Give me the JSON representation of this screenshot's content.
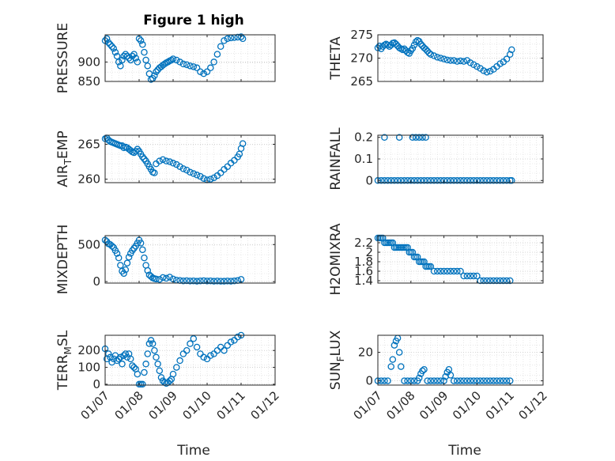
{
  "figure": {
    "title": "Figure 1 high",
    "x_axis_label": "Time",
    "marker_color": "#0072BD",
    "grid": "dotted"
  },
  "chart_data": [
    {
      "type": "scatter",
      "title": "Figure 1 high",
      "ylabel": "PRESSURE",
      "xlabel": "",
      "xlim": [
        0,
        5
      ],
      "ylim": [
        850,
        970
      ],
      "yticks": [
        850,
        900
      ],
      "xticks": [
        "01/07",
        "01/08",
        "01/09",
        "01/10",
        "01/11",
        "01/12"
      ],
      "show_xticklabels": false,
      "series": [
        {
          "x": [
            0,
            0.05,
            0.1,
            0.15,
            0.2,
            0.25,
            0.3,
            0.35,
            0.4,
            0.45,
            0.5,
            0.55,
            0.6,
            0.65,
            0.7,
            0.75,
            0.8,
            0.85,
            0.9,
            0.95,
            1.0,
            1.05,
            1.1,
            1.15,
            1.2,
            1.25,
            1.3,
            1.35,
            1.4,
            1.45,
            1.5,
            1.55,
            1.6,
            1.65,
            1.7,
            1.75,
            1.8,
            1.85,
            1.9,
            1.95,
            2.0,
            2.1,
            2.2,
            2.3,
            2.4,
            2.5,
            2.6,
            2.7,
            2.8,
            2.9,
            3.0,
            3.1,
            3.2,
            3.3,
            3.4,
            3.5,
            3.6,
            3.7,
            3.8,
            3.9,
            4.0,
            4.05
          ],
          "y": [
            955,
            960,
            950,
            945,
            940,
            935,
            925,
            915,
            900,
            890,
            905,
            915,
            920,
            915,
            910,
            905,
            915,
            920,
            910,
            900,
            960,
            955,
            945,
            925,
            905,
            890,
            870,
            855,
            858,
            865,
            875,
            880,
            885,
            888,
            892,
            895,
            898,
            900,
            903,
            905,
            908,
            905,
            900,
            895,
            893,
            890,
            888,
            885,
            875,
            870,
            875,
            885,
            900,
            920,
            940,
            955,
            960,
            962,
            963,
            964,
            965,
            960
          ]
        }
      ]
    },
    {
      "type": "scatter",
      "ylabel": "THETA",
      "xlabel": "",
      "xlim": [
        0,
        5
      ],
      "ylim": [
        265,
        275
      ],
      "yticks": [
        265,
        270,
        275
      ],
      "xticks": [
        "01/07",
        "01/08",
        "01/09",
        "01/10",
        "01/11",
        "01/12"
      ],
      "show_xticklabels": false,
      "series": [
        {
          "x": [
            0,
            0.05,
            0.1,
            0.15,
            0.2,
            0.25,
            0.3,
            0.35,
            0.4,
            0.45,
            0.5,
            0.55,
            0.6,
            0.65,
            0.7,
            0.75,
            0.8,
            0.85,
            0.9,
            0.95,
            1.0,
            1.05,
            1.1,
            1.15,
            1.2,
            1.25,
            1.3,
            1.35,
            1.4,
            1.45,
            1.5,
            1.55,
            1.6,
            1.7,
            1.8,
            1.9,
            2.0,
            2.1,
            2.2,
            2.3,
            2.4,
            2.5,
            2.6,
            2.7,
            2.8,
            2.9,
            3.0,
            3.1,
            3.2,
            3.3,
            3.4,
            3.5,
            3.6,
            3.7,
            3.8,
            3.9,
            4.0,
            4.05
          ],
          "y": [
            272.2,
            272.6,
            272.0,
            272.5,
            272.8,
            273.0,
            272.8,
            272.5,
            272.8,
            273.2,
            273.3,
            273.0,
            272.6,
            272.2,
            272.0,
            271.8,
            272.0,
            271.6,
            271.2,
            271.0,
            271.6,
            272.1,
            272.8,
            273.5,
            273.8,
            273.6,
            273.0,
            272.6,
            272.2,
            271.9,
            271.5,
            271.1,
            270.8,
            270.5,
            270.2,
            270.0,
            269.8,
            269.6,
            269.5,
            269.5,
            269.3,
            269.4,
            269.3,
            269.5,
            269.0,
            268.6,
            268.2,
            267.8,
            267.3,
            267.0,
            267.2,
            267.6,
            268.2,
            268.8,
            269.2,
            269.8,
            270.8,
            271.8
          ]
        }
      ]
    },
    {
      "type": "scatter",
      "ylabel": "AIR_TEMP",
      "xlabel": "",
      "xlim": [
        0,
        5
      ],
      "ylim": [
        259.5,
        266.3
      ],
      "yticks": [
        260,
        265
      ],
      "xticks": [
        "01/07",
        "01/08",
        "01/09",
        "01/10",
        "01/11",
        "01/12"
      ],
      "show_xticklabels": false,
      "series": [
        {
          "x": [
            0,
            0.05,
            0.1,
            0.15,
            0.2,
            0.25,
            0.3,
            0.35,
            0.4,
            0.45,
            0.5,
            0.55,
            0.6,
            0.65,
            0.7,
            0.75,
            0.8,
            0.85,
            0.9,
            0.95,
            1.0,
            1.05,
            1.1,
            1.15,
            1.2,
            1.25,
            1.3,
            1.35,
            1.4,
            1.45,
            1.5,
            1.6,
            1.7,
            1.8,
            1.9,
            2.0,
            2.1,
            2.2,
            2.3,
            2.4,
            2.5,
            2.6,
            2.7,
            2.8,
            2.9,
            3.0,
            3.1,
            3.2,
            3.3,
            3.4,
            3.5,
            3.6,
            3.7,
            3.8,
            3.9,
            3.95,
            4.0,
            4.05
          ],
          "y": [
            265.8,
            265.9,
            265.6,
            265.4,
            265.3,
            265.2,
            265.1,
            265.0,
            264.9,
            264.8,
            264.8,
            264.5,
            264.6,
            264.5,
            264.3,
            264.1,
            263.9,
            263.8,
            264.0,
            264.3,
            264.0,
            263.6,
            263.2,
            262.9,
            262.6,
            262.2,
            261.8,
            261.4,
            261.0,
            260.9,
            262.2,
            262.6,
            262.8,
            262.6,
            262.5,
            262.3,
            262.1,
            261.8,
            261.5,
            261.3,
            261.0,
            260.8,
            260.6,
            260.4,
            260.1,
            259.9,
            260.0,
            260.2,
            260.5,
            260.9,
            261.4,
            261.8,
            262.3,
            262.7,
            263.2,
            263.6,
            264.4,
            265.1
          ]
        }
      ]
    },
    {
      "type": "scatter",
      "ylabel": "RAINFALL",
      "xlabel": "",
      "xlim": [
        0,
        5
      ],
      "ylim": [
        -0.01,
        0.21
      ],
      "yticks": [
        0,
        0.1,
        0.2
      ],
      "xticks": [
        "01/07",
        "01/08",
        "01/09",
        "01/10",
        "01/11",
        "01/12"
      ],
      "show_xticklabels": false,
      "series": [
        {
          "x": [
            0,
            0.1,
            0.2,
            0.3,
            0.4,
            0.5,
            0.6,
            0.7,
            0.8,
            0.9,
            1.0,
            1.1,
            1.2,
            1.3,
            1.4,
            1.5,
            1.6,
            1.7,
            1.8,
            1.9,
            2.0,
            2.1,
            2.2,
            2.3,
            2.4,
            2.5,
            2.6,
            2.7,
            2.8,
            2.9,
            3.0,
            3.1,
            3.2,
            3.3,
            3.4,
            3.5,
            3.6,
            3.7,
            3.8,
            3.9,
            4.0,
            4.05,
            0.2,
            0.65,
            1.05,
            1.15,
            1.25,
            1.35,
            1.45
          ],
          "y": [
            0,
            0,
            0,
            0,
            0,
            0,
            0,
            0,
            0,
            0,
            0,
            0,
            0,
            0,
            0,
            0,
            0,
            0,
            0,
            0,
            0,
            0,
            0,
            0,
            0,
            0,
            0,
            0,
            0,
            0,
            0,
            0,
            0,
            0,
            0,
            0,
            0,
            0,
            0,
            0,
            0,
            0,
            0.2,
            0.2,
            0.2,
            0.2,
            0.2,
            0.2,
            0.2
          ]
        }
      ]
    },
    {
      "type": "scatter",
      "ylabel": "MIXDEPTH",
      "xlabel": "",
      "xlim": [
        0,
        5
      ],
      "ylim": [
        -20,
        620
      ],
      "yticks": [
        0,
        500
      ],
      "xticks": [
        "01/07",
        "01/08",
        "01/09",
        "01/10",
        "01/11",
        "01/12"
      ],
      "show_xticklabels": false,
      "series": [
        {
          "x": [
            0,
            0.05,
            0.1,
            0.15,
            0.2,
            0.25,
            0.3,
            0.35,
            0.4,
            0.45,
            0.5,
            0.55,
            0.6,
            0.65,
            0.7,
            0.75,
            0.8,
            0.85,
            0.9,
            0.95,
            1.0,
            1.05,
            1.1,
            1.15,
            1.2,
            1.25,
            1.3,
            1.35,
            1.4,
            1.45,
            1.5,
            1.6,
            1.7,
            1.8,
            1.9,
            2.0,
            2.1,
            2.2,
            2.3,
            2.4,
            2.5,
            2.6,
            2.7,
            2.8,
            2.9,
            3.0,
            3.1,
            3.2,
            3.3,
            3.4,
            3.5,
            3.6,
            3.7,
            3.8,
            3.9,
            4.0
          ],
          "y": [
            560,
            540,
            510,
            500,
            480,
            460,
            420,
            380,
            320,
            220,
            140,
            110,
            160,
            250,
            330,
            380,
            420,
            450,
            480,
            520,
            560,
            520,
            430,
            320,
            220,
            150,
            90,
            70,
            50,
            40,
            35,
            30,
            55,
            45,
            60,
            35,
            20,
            15,
            10,
            12,
            8,
            10,
            5,
            10,
            12,
            8,
            10,
            5,
            8,
            6,
            5,
            8,
            6,
            10,
            15,
            30
          ]
        }
      ]
    },
    {
      "type": "scatter",
      "ylabel": "H2OMIXRA",
      "xlabel": "",
      "xlim": [
        0,
        5
      ],
      "ylim": [
        1.35,
        2.35
      ],
      "yticks": [
        1.4,
        1.6,
        1.8,
        2,
        2.2
      ],
      "xticks": [
        "01/07",
        "01/08",
        "01/09",
        "01/10",
        "01/11",
        "01/12"
      ],
      "show_xticklabels": false,
      "series": [
        {
          "x": [
            0,
            0.05,
            0.1,
            0.15,
            0.2,
            0.25,
            0.3,
            0.35,
            0.4,
            0.45,
            0.5,
            0.55,
            0.6,
            0.65,
            0.7,
            0.75,
            0.8,
            0.85,
            0.9,
            0.95,
            1.0,
            1.05,
            1.1,
            1.15,
            1.2,
            1.25,
            1.3,
            1.35,
            1.4,
            1.45,
            1.5,
            1.55,
            1.6,
            1.7,
            1.8,
            1.9,
            2.0,
            2.1,
            2.2,
            2.3,
            2.4,
            2.5,
            2.6,
            2.7,
            2.8,
            2.9,
            3.0,
            3.1,
            3.2,
            3.3,
            3.4,
            3.5,
            3.6,
            3.7,
            3.8,
            3.9,
            4.0
          ],
          "y": [
            2.3,
            2.3,
            2.3,
            2.3,
            2.2,
            2.2,
            2.2,
            2.2,
            2.2,
            2.2,
            2.1,
            2.1,
            2.1,
            2.1,
            2.1,
            2.1,
            2.1,
            2.1,
            2.1,
            2.0,
            2.0,
            2.0,
            1.9,
            1.9,
            1.9,
            1.8,
            1.8,
            1.8,
            1.8,
            1.7,
            1.7,
            1.7,
            1.7,
            1.6,
            1.6,
            1.6,
            1.6,
            1.6,
            1.6,
            1.6,
            1.6,
            1.6,
            1.5,
            1.5,
            1.5,
            1.5,
            1.5,
            1.4,
            1.4,
            1.4,
            1.4,
            1.4,
            1.4,
            1.4,
            1.4,
            1.4,
            1.4
          ]
        }
      ]
    },
    {
      "type": "scatter",
      "ylabel": "TERR_MSL",
      "xlabel": "Time",
      "xlim": [
        0,
        5
      ],
      "ylim": [
        -5,
        290
      ],
      "yticks": [
        0,
        100,
        200
      ],
      "xticks": [
        "01/07",
        "01/08",
        "01/09",
        "01/10",
        "01/11",
        "01/12"
      ],
      "show_xticklabels": true,
      "series": [
        {
          "x": [
            0,
            0.05,
            0.1,
            0.15,
            0.2,
            0.25,
            0.3,
            0.35,
            0.4,
            0.45,
            0.5,
            0.55,
            0.6,
            0.65,
            0.7,
            0.75,
            0.8,
            0.85,
            0.9,
            0.95,
            1.0,
            1.05,
            1.1,
            1.15,
            1.2,
            1.25,
            1.3,
            1.35,
            1.4,
            1.45,
            1.5,
            1.55,
            1.6,
            1.65,
            1.7,
            1.75,
            1.8,
            1.85,
            1.9,
            1.95,
            2.0,
            2.1,
            2.2,
            2.3,
            2.4,
            2.5,
            2.6,
            2.7,
            2.8,
            2.9,
            3.0,
            3.1,
            3.2,
            3.3,
            3.4,
            3.5,
            3.6,
            3.7,
            3.8,
            3.9,
            4.0
          ],
          "y": [
            210,
            150,
            180,
            160,
            130,
            150,
            170,
            140,
            150,
            160,
            120,
            170,
            180,
            160,
            180,
            150,
            110,
            100,
            90,
            60,
            0,
            0,
            0,
            70,
            120,
            180,
            240,
            260,
            240,
            200,
            160,
            120,
            80,
            40,
            20,
            10,
            5,
            10,
            20,
            30,
            60,
            100,
            140,
            180,
            200,
            240,
            270,
            220,
            180,
            160,
            150,
            170,
            180,
            200,
            220,
            200,
            230,
            250,
            260,
            280,
            290
          ]
        }
      ]
    },
    {
      "type": "scatter",
      "ylabel": "SUN_FLUX",
      "xlabel": "Time",
      "xlim": [
        0,
        5
      ],
      "ylim": [
        -3,
        32
      ],
      "yticks": [
        0,
        20
      ],
      "xticks": [
        "01/07",
        "01/08",
        "01/09",
        "01/10",
        "01/11",
        "01/12"
      ],
      "show_xticklabels": true,
      "series": [
        {
          "x": [
            0,
            0.1,
            0.2,
            0.3,
            0.4,
            0.45,
            0.5,
            0.55,
            0.6,
            0.65,
            0.7,
            0.8,
            0.9,
            1.0,
            1.1,
            1.2,
            1.25,
            1.3,
            1.35,
            1.4,
            1.5,
            1.6,
            1.7,
            1.8,
            1.9,
            2.0,
            2.05,
            2.1,
            2.15,
            2.2,
            2.3,
            2.4,
            2.5,
            2.6,
            2.7,
            2.8,
            2.9,
            3.0,
            3.1,
            3.2,
            3.3,
            3.4,
            3.5,
            3.6,
            3.7,
            3.8,
            3.9,
            4.0
          ],
          "y": [
            0,
            0,
            0,
            0,
            10,
            15,
            25,
            28,
            30,
            20,
            10,
            0,
            0,
            0,
            0,
            0,
            2,
            5,
            7,
            8,
            0,
            0,
            0,
            0,
            0,
            0,
            3,
            6,
            8,
            4,
            0,
            0,
            0,
            0,
            0,
            0,
            0,
            0,
            0,
            0,
            0,
            0,
            0,
            0,
            0,
            0,
            0,
            0
          ]
        }
      ]
    }
  ]
}
